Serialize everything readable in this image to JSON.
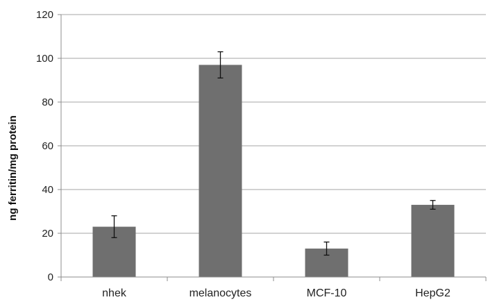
{
  "chart_data": {
    "type": "bar",
    "title": "",
    "xlabel": "",
    "ylabel": "ng ferritin/mg protein",
    "ylim": [
      0,
      120
    ],
    "yticks": [
      0,
      20,
      40,
      60,
      80,
      100,
      120
    ],
    "grid": true,
    "legend": "none",
    "categories": [
      "nhek",
      "melanocytes",
      "MCF-10",
      "HepG2"
    ],
    "values": [
      23,
      97,
      13,
      33
    ],
    "error": [
      5,
      6,
      3,
      2
    ],
    "colors": {
      "bar": "#6f6f6f",
      "grid": "#a6a6a6",
      "axis": "#8c8c8c",
      "error_bar": "#111111"
    }
  }
}
